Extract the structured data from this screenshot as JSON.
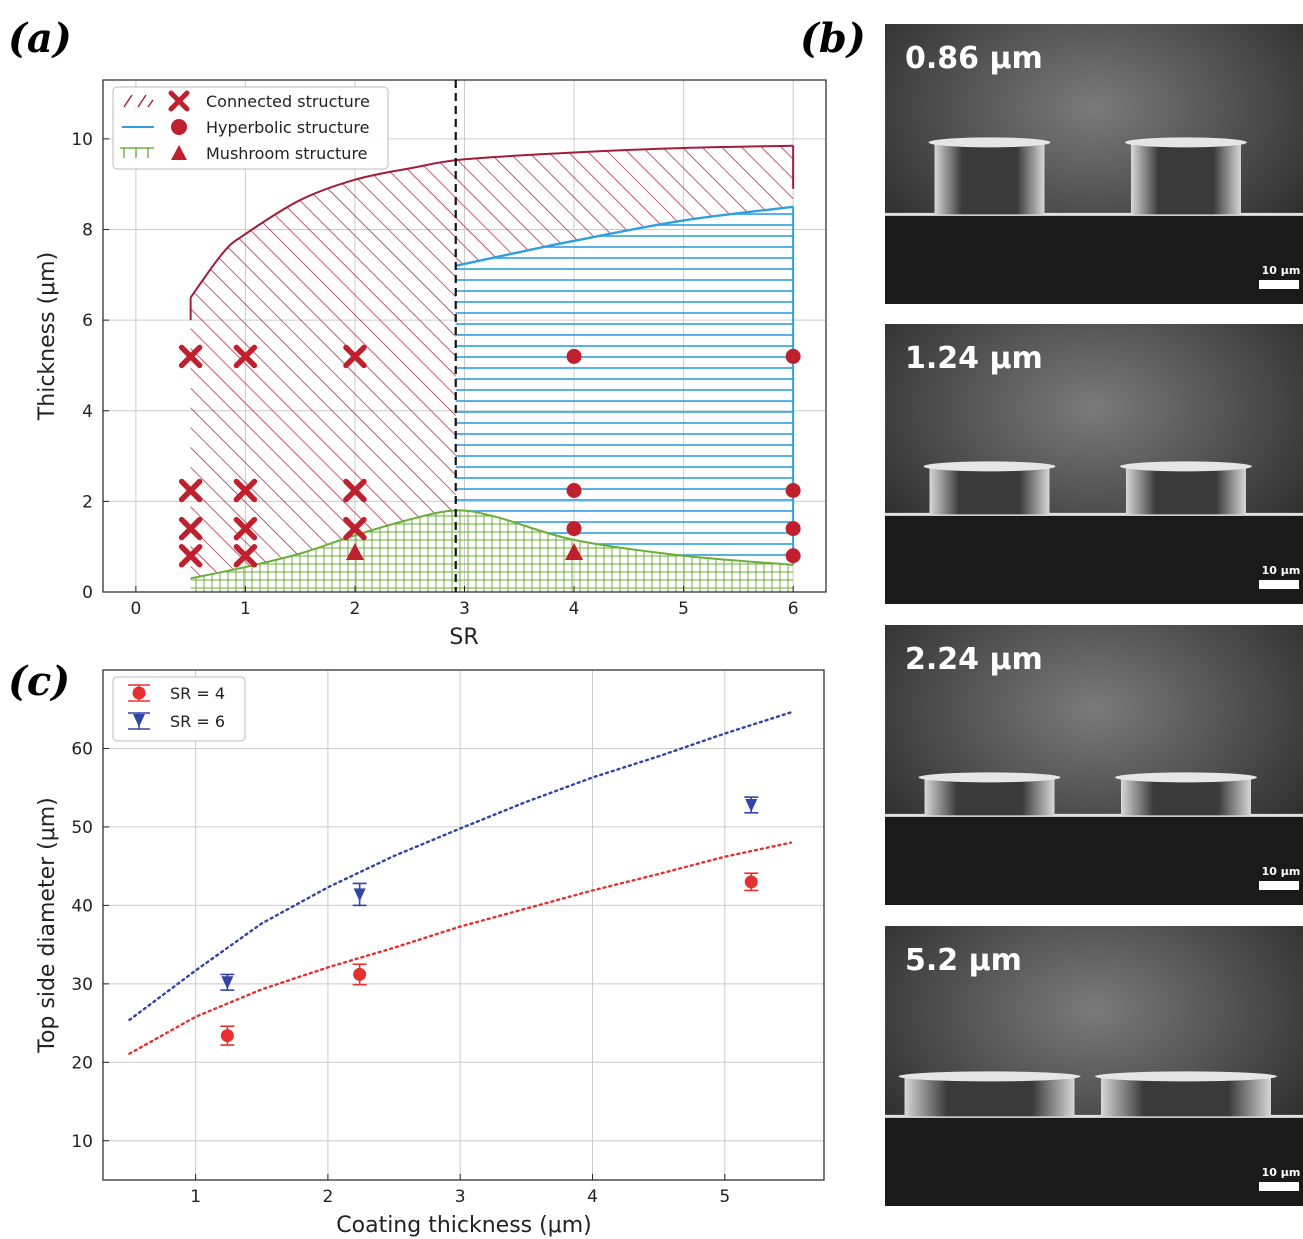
{
  "panels": {
    "a": "(a)",
    "b": "(b)",
    "c": "(c)"
  },
  "colors": {
    "connected": "#a11d3a",
    "hyperbolic": "#2f9fe0",
    "mushroom": "#6cae3c",
    "marker": "#c0202e",
    "sr4": "#e63030",
    "sr6": "#3344a6"
  },
  "chart_data": [
    {
      "id": "a",
      "type": "scatter",
      "xlabel": "SR",
      "ylabel": "Thickness (μm)",
      "xlim": [
        -0.3,
        6.3
      ],
      "ylim": [
        0,
        11.3
      ],
      "xticks": [
        0,
        1,
        2,
        3,
        4,
        5,
        6
      ],
      "yticks": [
        0,
        2,
        4,
        6,
        8,
        10
      ],
      "grid": true,
      "legend_position": "top-left",
      "divider_x": 2.92,
      "legend": [
        {
          "key": "connected",
          "label": "Connected structure"
        },
        {
          "key": "hyperbolic",
          "label": "Hyperbolic structure"
        },
        {
          "key": "mushroom",
          "label": "Mushroom structure"
        }
      ],
      "regions": {
        "connected_top": [
          [
            0.5,
            6.5
          ],
          [
            0.8,
            7.5
          ],
          [
            1,
            7.9
          ],
          [
            1.5,
            8.65
          ],
          [
            2,
            9.1
          ],
          [
            2.5,
            9.35
          ],
          [
            3,
            9.55
          ],
          [
            4,
            9.7
          ],
          [
            5,
            9.8
          ],
          [
            6,
            9.85
          ]
        ],
        "connected_right_bottom": [
          [
            6,
            8.9
          ]
        ],
        "hyperbolic_top": [
          [
            2.92,
            7.2
          ],
          [
            3.5,
            7.5
          ],
          [
            4,
            7.75
          ],
          [
            5,
            8.2
          ],
          [
            6,
            8.5
          ]
        ],
        "mushroom_top": [
          [
            0.5,
            0.3
          ],
          [
            1,
            0.55
          ],
          [
            1.5,
            0.85
          ],
          [
            2,
            1.25
          ],
          [
            2.5,
            1.6
          ],
          [
            2.92,
            1.8
          ],
          [
            3.3,
            1.65
          ],
          [
            4,
            1.15
          ],
          [
            5,
            0.8
          ],
          [
            6,
            0.6
          ]
        ]
      },
      "series": [
        {
          "name": "Connected structure",
          "marker": "x",
          "points": [
            [
              0.5,
              5.2
            ],
            [
              1,
              5.2
            ],
            [
              2,
              5.2
            ],
            [
              0.5,
              2.24
            ],
            [
              1,
              2.24
            ],
            [
              2,
              2.24
            ],
            [
              0.5,
              1.4
            ],
            [
              1,
              1.4
            ],
            [
              2,
              1.4
            ],
            [
              0.5,
              0.8
            ],
            [
              1,
              0.8
            ]
          ]
        },
        {
          "name": "Hyperbolic structure",
          "marker": "circle",
          "points": [
            [
              4,
              5.2
            ],
            [
              6,
              5.2
            ],
            [
              4,
              2.24
            ],
            [
              6,
              2.24
            ],
            [
              4,
              1.4
            ],
            [
              6,
              1.4
            ],
            [
              6,
              0.8
            ]
          ]
        },
        {
          "name": "Mushroom structure",
          "marker": "triangle",
          "points": [
            [
              2,
              0.86
            ],
            [
              4,
              0.86
            ]
          ]
        }
      ]
    },
    {
      "id": "c",
      "type": "scatter",
      "xlabel": "Coating thickness (μm)",
      "ylabel": "Top side diameter (μm)",
      "xlim": [
        0.3,
        5.75
      ],
      "ylim": [
        5,
        70
      ],
      "xticks": [
        1,
        2,
        3,
        4,
        5
      ],
      "yticks": [
        10,
        20,
        30,
        40,
        50,
        60
      ],
      "grid": true,
      "legend_position": "top-left",
      "series": [
        {
          "name": "SR = 4",
          "key": "sr4",
          "marker": "circle",
          "points": [
            [
              1.24,
              23.4,
              1.2
            ],
            [
              2.24,
              31.2,
              1.3
            ],
            [
              5.2,
              43.0,
              1.1
            ]
          ],
          "fit": [
            [
              0.5,
              21.1
            ],
            [
              1,
              25.8
            ],
            [
              1.5,
              29.3
            ],
            [
              2,
              32.1
            ],
            [
              2.5,
              34.6
            ],
            [
              3,
              37.3
            ],
            [
              3.5,
              39.6
            ],
            [
              4,
              41.9
            ],
            [
              4.5,
              44.0
            ],
            [
              5,
              46.2
            ],
            [
              5.5,
              48.0
            ]
          ]
        },
        {
          "name": "SR = 6",
          "key": "sr6",
          "marker": "triangle-down",
          "points": [
            [
              1.24,
              30.2,
              1.0
            ],
            [
              2.24,
              41.4,
              1.4
            ],
            [
              5.2,
              52.8,
              1.0
            ]
          ],
          "fit": [
            [
              0.5,
              25.4
            ],
            [
              1,
              31.7
            ],
            [
              1.5,
              37.7
            ],
            [
              2,
              42.3
            ],
            [
              2.5,
              46.3
            ],
            [
              3,
              49.8
            ],
            [
              3.5,
              53.2
            ],
            [
              4,
              56.3
            ],
            [
              4.5,
              59.0
            ],
            [
              5,
              61.9
            ],
            [
              5.5,
              64.6
            ]
          ]
        }
      ]
    }
  ],
  "sem_images": [
    {
      "label": "0.86 μm",
      "scale": "10 μm"
    },
    {
      "label": "1.24 μm",
      "scale": "10 μm"
    },
    {
      "label": "2.24 μm",
      "scale": "10 μm"
    },
    {
      "label": "5.2 μm",
      "scale": "10 μm"
    }
  ]
}
